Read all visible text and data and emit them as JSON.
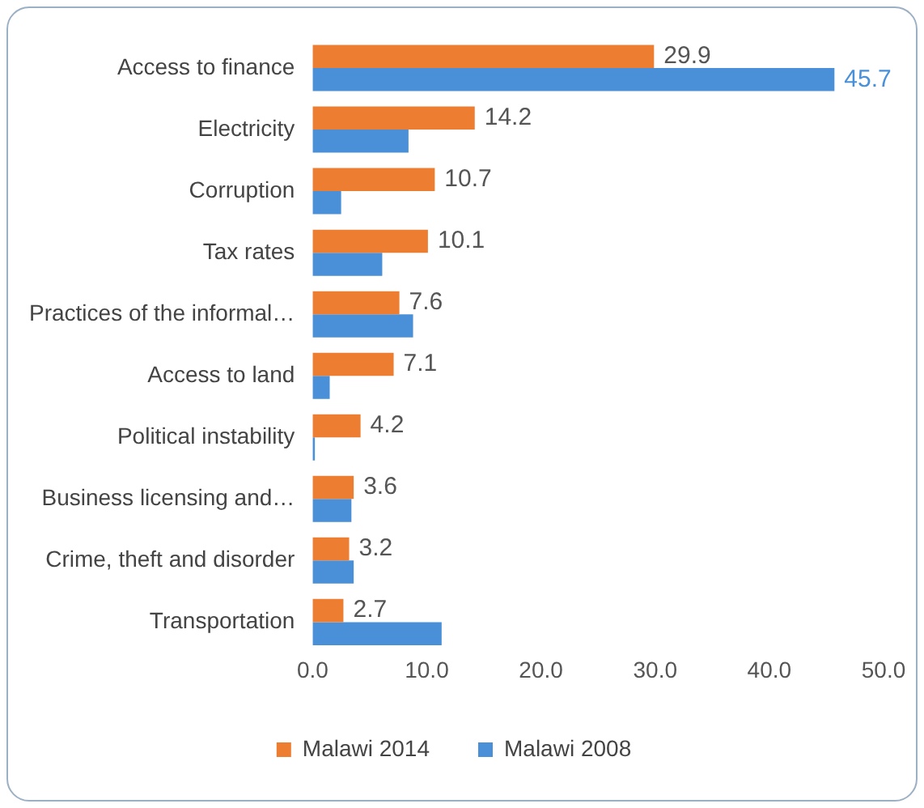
{
  "chart_data": {
    "type": "bar",
    "orientation": "horizontal",
    "categories": [
      "Access to finance",
      "Electricity",
      "Corruption",
      "Tax rates",
      "Practices of the informal…",
      "Access to land",
      "Political instability",
      "Business licensing and…",
      "Crime, theft and disorder",
      "Transportation"
    ],
    "series": [
      {
        "name": "Malawi 2014",
        "color": "#ed7d31",
        "values": [
          29.9,
          14.2,
          10.7,
          10.1,
          7.6,
          7.1,
          4.2,
          3.6,
          3.2,
          2.7
        ],
        "value_labels": [
          "29.9",
          "14.2",
          "10.7",
          "10.1",
          "7.6",
          "7.1",
          "4.2",
          "3.6",
          "3.2",
          "2.7"
        ]
      },
      {
        "name": "Malawi 2008",
        "color": "#4a90d9",
        "values": [
          45.7,
          8.4,
          2.5,
          6.1,
          8.8,
          1.5,
          0.2,
          3.4,
          3.6,
          11.3
        ],
        "value_labels": [
          "45.7",
          null,
          null,
          null,
          null,
          null,
          null,
          null,
          null,
          null
        ]
      }
    ],
    "xlim": [
      0,
      50
    ],
    "xticks": [
      {
        "value": 0,
        "label": "0.0"
      },
      {
        "value": 10,
        "label": "10.0"
      },
      {
        "value": 20,
        "label": "20.0"
      },
      {
        "value": 30,
        "label": "30.0"
      },
      {
        "value": 40,
        "label": "40.0"
      },
      {
        "value": 50,
        "label": "50.0"
      }
    ],
    "grid": false,
    "legend": "bottom"
  }
}
